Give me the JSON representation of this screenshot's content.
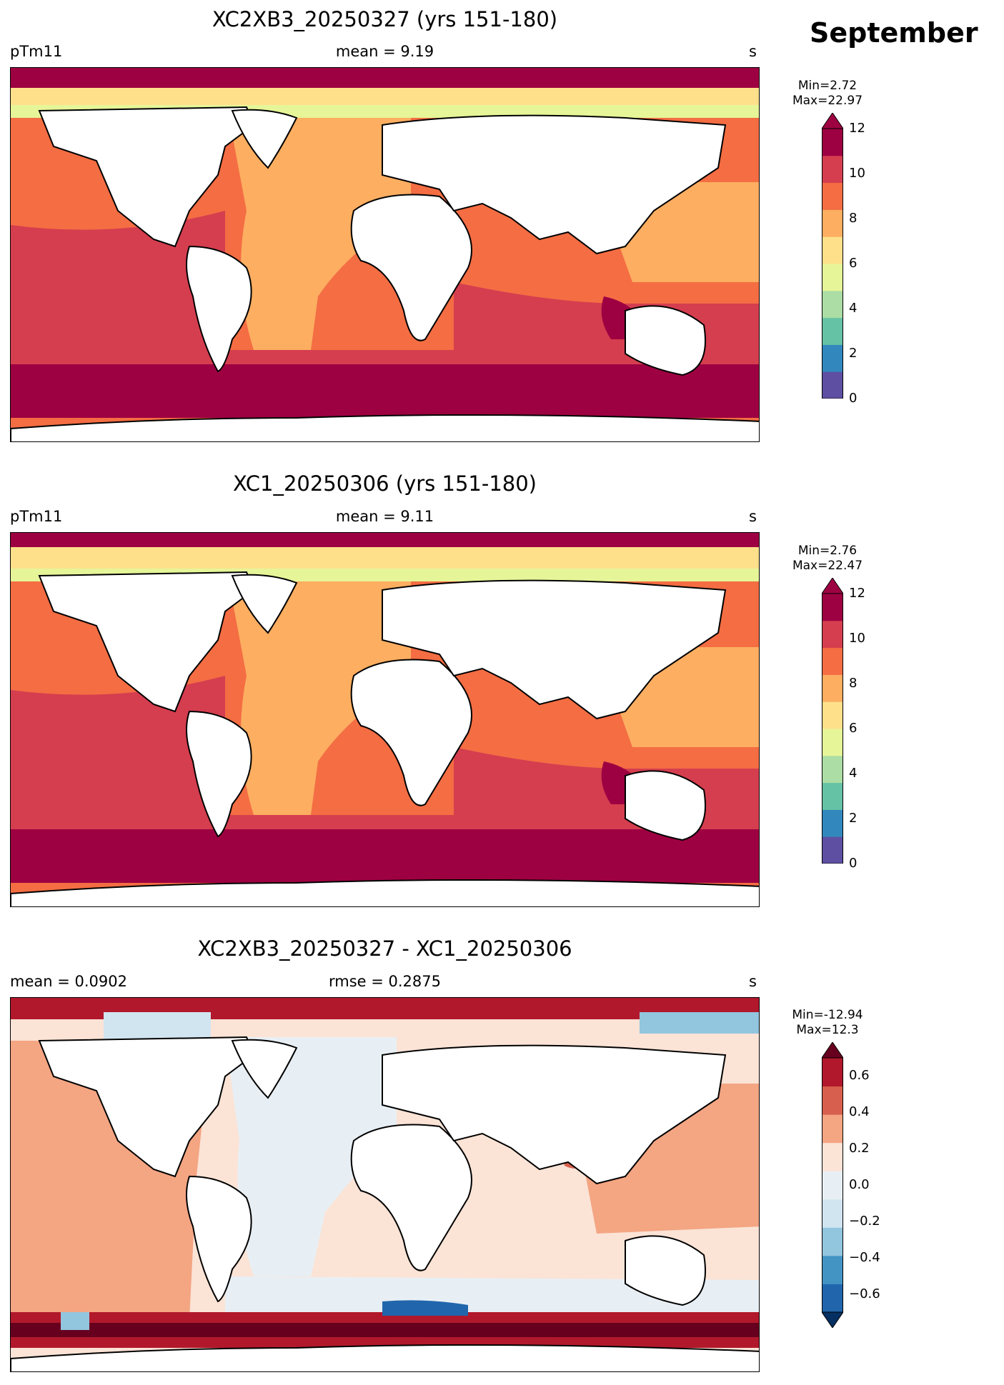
{
  "header": {
    "month": "September"
  },
  "panels": [
    {
      "title": "XC2XB3_20250327 (yrs 151-180)",
      "left_label": "pTm11",
      "center_label": "mean = 9.19",
      "unit": "s",
      "minmax": [
        "Min=2.72",
        "Max=22.97"
      ],
      "colorbar": {
        "ticks": [
          "0",
          "2",
          "4",
          "6",
          "8",
          "10",
          "12"
        ],
        "colors": [
          "#5e4fa2",
          "#3288bd",
          "#66c2a5",
          "#abdda4",
          "#e6f598",
          "#fee08b",
          "#fdae61",
          "#f46d43",
          "#d53e4f",
          "#9e0142"
        ],
        "extend": "max"
      }
    },
    {
      "title": "XC1_20250306 (yrs 151-180)",
      "left_label": "pTm11",
      "center_label": "mean = 9.11",
      "unit": "s",
      "minmax": [
        "Min=2.76",
        "Max=22.47"
      ],
      "colorbar": {
        "ticks": [
          "0",
          "2",
          "4",
          "6",
          "8",
          "10",
          "12"
        ],
        "colors": [
          "#5e4fa2",
          "#3288bd",
          "#66c2a5",
          "#abdda4",
          "#e6f598",
          "#fee08b",
          "#fdae61",
          "#f46d43",
          "#d53e4f",
          "#9e0142"
        ],
        "extend": "max"
      }
    },
    {
      "title": "XC2XB3_20250327 - XC1_20250306",
      "left_label": "mean = 0.0902",
      "center_label": "rmse = 0.2875",
      "unit": "s",
      "minmax": [
        "Min=-12.94",
        "Max=12.3"
      ],
      "colorbar": {
        "ticks": [
          "−0.6",
          "−0.4",
          "−0.2",
          "0.0",
          "0.2",
          "0.4",
          "0.6"
        ],
        "colors": [
          "#053061",
          "#2166ac",
          "#4393c3",
          "#92c5de",
          "#d1e5f0",
          "#e8eff4",
          "#fbe3d6",
          "#f4a582",
          "#d6604d",
          "#b2182b",
          "#67001f"
        ],
        "extend": "both"
      }
    }
  ]
}
